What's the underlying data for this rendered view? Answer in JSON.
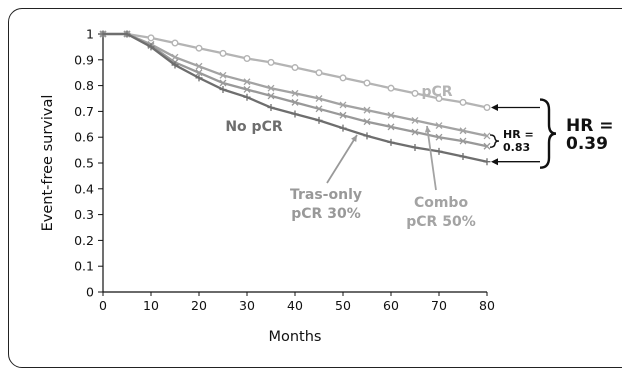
{
  "chart_data": {
    "type": "line",
    "xlabel": "Months",
    "ylabel": "Event-free survival",
    "xlim": [
      0,
      80
    ],
    "ylim": [
      0,
      1
    ],
    "x_ticks": [
      "0",
      "10",
      "20",
      "30",
      "40",
      "50",
      "60",
      "70",
      "80"
    ],
    "y_ticks": [
      "0",
      "0.1",
      "0.2",
      "0.3",
      "0.4",
      "0.5",
      "0.6",
      "0.7",
      "0.8",
      "0.9",
      "1"
    ],
    "grid": false,
    "x": [
      0,
      5,
      10,
      15,
      20,
      25,
      30,
      35,
      40,
      45,
      50,
      55,
      60,
      65,
      70,
      75,
      80
    ],
    "series": [
      {
        "name": "pCR",
        "label": "pCR",
        "color": "#b4b4b4",
        "marker": "circle",
        "values": [
          1.0,
          1.0,
          0.985,
          0.965,
          0.945,
          0.925,
          0.905,
          0.89,
          0.87,
          0.85,
          0.83,
          0.81,
          0.79,
          0.77,
          0.75,
          0.735,
          0.715
        ]
      },
      {
        "name": "Combo pCR 50%",
        "label_lines": [
          "Combo",
          "pCR 50%"
        ],
        "color": "#a3a3a3",
        "marker": "x",
        "values": [
          1.0,
          1.0,
          0.96,
          0.91,
          0.875,
          0.84,
          0.815,
          0.79,
          0.77,
          0.75,
          0.725,
          0.705,
          0.685,
          0.665,
          0.645,
          0.625,
          0.605
        ]
      },
      {
        "name": "Tras-only pCR 30%",
        "label_lines": [
          "Tras-only",
          "pCR 30%"
        ],
        "color": "#999999",
        "marker": "x",
        "values": [
          1.0,
          1.0,
          0.955,
          0.89,
          0.85,
          0.81,
          0.785,
          0.76,
          0.735,
          0.71,
          0.685,
          0.66,
          0.64,
          0.62,
          0.6,
          0.585,
          0.565
        ]
      },
      {
        "name": "No pCR",
        "label": "No pCR",
        "color": "#6e6e6e",
        "marker": "plus",
        "values": [
          1.0,
          1.0,
          0.95,
          0.88,
          0.83,
          0.785,
          0.755,
          0.715,
          0.69,
          0.665,
          0.635,
          0.605,
          0.58,
          0.56,
          0.545,
          0.525,
          0.505
        ]
      }
    ],
    "annotations": [
      {
        "text": "HR = 0.83",
        "lines": [
          "HR =",
          "0.83"
        ],
        "between": [
          "Combo pCR 50%",
          "Tras-only pCR 30%"
        ]
      },
      {
        "text": "HR = 0.39",
        "lines": [
          "HR =",
          "0.39"
        ],
        "between": [
          "pCR",
          "No pCR"
        ]
      }
    ]
  }
}
